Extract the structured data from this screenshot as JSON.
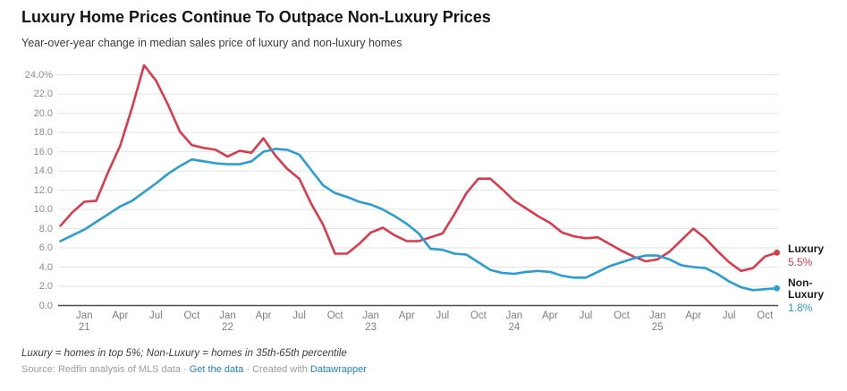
{
  "header": {
    "title": "Luxury Home Prices Continue To Outpace Non-Luxury Prices",
    "subtitle": "Year-over-year change in median sales price of luxury and non-luxury homes"
  },
  "chart_data": {
    "type": "line",
    "x": [
      "Nov 20",
      "Dec 20",
      "Jan 21",
      "Feb 21",
      "Mar 21",
      "Apr 21",
      "May 21",
      "Jun 21",
      "Jul 21",
      "Aug 21",
      "Sep 21",
      "Oct 21",
      "Nov 21",
      "Dec 21",
      "Jan 22",
      "Feb 22",
      "Mar 22",
      "Apr 22",
      "May 22",
      "Jun 22",
      "Jul 22",
      "Aug 22",
      "Sep 22",
      "Oct 22",
      "Nov 22",
      "Dec 22",
      "Jan 23",
      "Feb 23",
      "Mar 23",
      "Apr 23",
      "May 23",
      "Jun 23",
      "Jul 23",
      "Aug 23",
      "Sep 23",
      "Oct 23",
      "Nov 23",
      "Dec 23",
      "Jan 24",
      "Feb 24",
      "Mar 24",
      "Apr 24",
      "May 24",
      "Jun 24",
      "Jul 24",
      "Aug 24",
      "Sep 24",
      "Oct 24",
      "Nov 24",
      "Dec 24",
      "Jan 25",
      "Feb 25",
      "Mar 25",
      "Apr 25",
      "May 25",
      "Jun 25",
      "Jul 25",
      "Aug 25",
      "Sep 25",
      "Oct 25",
      "Nov 25"
    ],
    "series": [
      {
        "name": "Luxury",
        "color": "#dc3a4b",
        "end_label": "Luxury",
        "end_value": "5.5%",
        "values": [
          8.3,
          9.7,
          10.8,
          10.9,
          13.9,
          16.6,
          20.6,
          25.0,
          23.4,
          20.9,
          18.1,
          16.7,
          16.4,
          16.2,
          15.5,
          16.1,
          15.9,
          17.4,
          15.6,
          14.2,
          13.2,
          10.6,
          8.4,
          5.4,
          5.4,
          6.4,
          7.6,
          8.1,
          7.3,
          6.7,
          6.7,
          7.1,
          7.5,
          9.5,
          11.7,
          13.2,
          13.2,
          12.1,
          10.9,
          10.1,
          9.3,
          8.6,
          7.6,
          7.2,
          7.0,
          7.1,
          6.4,
          5.7,
          5.1,
          4.6,
          4.8,
          5.6,
          6.8,
          8.0,
          7.0,
          5.7,
          4.5,
          3.6,
          3.9,
          5.1,
          5.5
        ]
      },
      {
        "name": "Non-Luxury",
        "color": "#2a9dd4",
        "end_label": "Non-Luxury",
        "end_value": "1.8%",
        "values": [
          6.7,
          7.3,
          7.9,
          8.7,
          9.5,
          10.3,
          10.9,
          11.8,
          12.7,
          13.7,
          14.5,
          15.2,
          15.0,
          14.8,
          14.7,
          14.7,
          15.0,
          16.0,
          16.3,
          16.2,
          15.7,
          14.1,
          12.5,
          11.7,
          11.3,
          10.8,
          10.5,
          10.0,
          9.3,
          8.5,
          7.5,
          5.9,
          5.8,
          5.4,
          5.3,
          4.5,
          3.7,
          3.4,
          3.3,
          3.5,
          3.6,
          3.5,
          3.1,
          2.9,
          2.9,
          3.5,
          4.1,
          4.5,
          4.9,
          5.2,
          5.2,
          4.8,
          4.2,
          4.0,
          3.9,
          3.3,
          2.5,
          1.9,
          1.6,
          1.7,
          1.8
        ]
      }
    ],
    "title": "Luxury Home Prices Continue To Outpace Non-Luxury Prices",
    "ylabel": "",
    "xlabel": "",
    "ylim": [
      0,
      24
    ],
    "y_tick_step": 2,
    "grid": "horizontal",
    "legend_position": "end-of-line-labels"
  },
  "axes": {
    "y_ticks": [
      "24.0%",
      "22.0",
      "20.0",
      "18.0",
      "16.0",
      "14.0",
      "12.0",
      "10.0",
      "8.0",
      "6.0",
      "4.0",
      "2.0",
      "0.0"
    ],
    "x_ticks": [
      {
        "label": "Jan",
        "year": "21",
        "i": 2
      },
      {
        "label": "Apr",
        "i": 5
      },
      {
        "label": "Jul",
        "i": 8
      },
      {
        "label": "Oct",
        "i": 11
      },
      {
        "label": "Jan",
        "year": "22",
        "i": 14
      },
      {
        "label": "Apr",
        "i": 17
      },
      {
        "label": "Jul",
        "i": 20
      },
      {
        "label": "Oct",
        "i": 23
      },
      {
        "label": "Jan",
        "year": "23",
        "i": 26
      },
      {
        "label": "Apr",
        "i": 29
      },
      {
        "label": "Jul",
        "i": 32
      },
      {
        "label": "Oct",
        "i": 35
      },
      {
        "label": "Jan",
        "year": "24",
        "i": 38
      },
      {
        "label": "Apr",
        "i": 41
      },
      {
        "label": "Jul",
        "i": 44
      },
      {
        "label": "Oct",
        "i": 47
      },
      {
        "label": "Jan",
        "year": "25",
        "i": 50
      },
      {
        "label": "Apr",
        "i": 53
      },
      {
        "label": "Jul",
        "i": 56
      },
      {
        "label": "Oct",
        "i": 59
      }
    ]
  },
  "footer": {
    "note": "Luxury = homes in top 5%; Non-Luxury = homes in 35th-65th percentile",
    "source_prefix": "Source: Redfin analysis of MLS data",
    "separator": "·",
    "link_get_data": "Get the data",
    "created_with": "Created with",
    "link_datawrapper": "Datawrapper"
  },
  "theme": {
    "grid_color": "#e3e3e3",
    "baseline_color": "#4c4c4c",
    "luxury_color": "#dc3a4b",
    "non_luxury_color": "#2a9dd4",
    "link_color": "#1f85c2"
  }
}
